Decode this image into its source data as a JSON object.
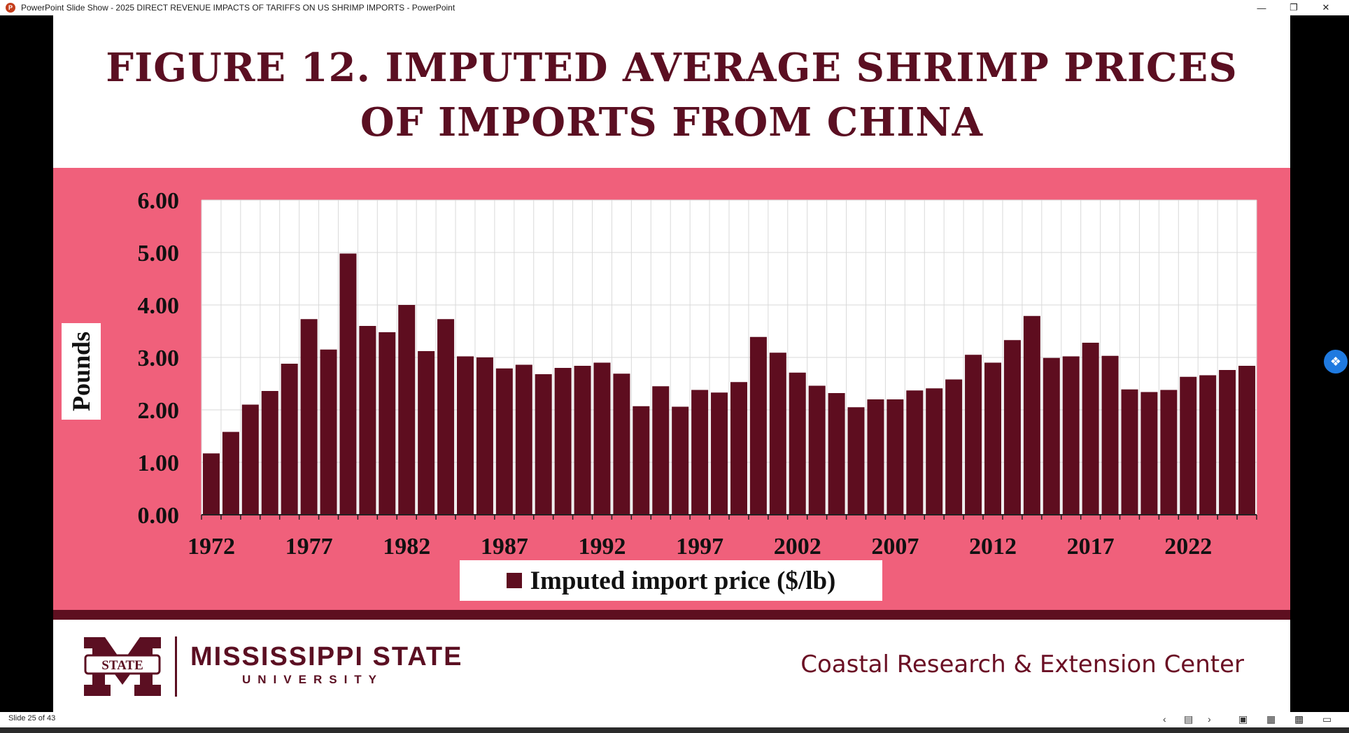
{
  "window": {
    "app_title": "PowerPoint Slide Show  -  2025 DIRECT REVENUE IMPACTS OF TARIFFS ON US SHRIMP IMPORTS - PowerPoint",
    "app_icon": "P"
  },
  "slide": {
    "title_line1": "FIGURE 12. IMPUTED AVERAGE SHRIMP PRICES",
    "title_line2": "OF IMPORTS FROM CHINA",
    "university_name": "MISSISSIPPI STATE",
    "university_sub": "UNIVERSITY",
    "logo_text": "STATE",
    "center_name": "Coastal Research & Extension Center",
    "colors": {
      "maroon": "#5b0f22",
      "bar": "#5e0d1f",
      "panel": "#f0607b",
      "plot_bg": "#ffffff"
    }
  },
  "chart_data": {
    "type": "bar",
    "title": "",
    "ylabel": "Pounds",
    "xlabel": "",
    "ylim": [
      0,
      6
    ],
    "ytick_labels": [
      "0.00",
      "1.00",
      "2.00",
      "3.00",
      "4.00",
      "5.00",
      "6.00"
    ],
    "xtick_labels": [
      "1972",
      "1977",
      "1982",
      "1987",
      "1992",
      "1997",
      "2002",
      "2007",
      "2012",
      "2017",
      "2022"
    ],
    "grid": true,
    "legend_position": "bottom",
    "series": [
      {
        "name": "Imputed import price ($/lb)",
        "x": [
          1972,
          1973,
          1974,
          1975,
          1976,
          1977,
          1978,
          1979,
          1980,
          1981,
          1982,
          1983,
          1984,
          1985,
          1986,
          1987,
          1988,
          1989,
          1990,
          1991,
          1992,
          1993,
          1994,
          1995,
          1996,
          1997,
          1998,
          1999,
          2000,
          2001,
          2002,
          2003,
          2004,
          2005,
          2006,
          2007,
          2008,
          2009,
          2010,
          2011,
          2012,
          2013,
          2014,
          2015,
          2016,
          2017,
          2018,
          2019,
          2020,
          2021,
          2022,
          2023,
          2024,
          2025
        ],
        "values": [
          1.17,
          1.58,
          2.1,
          2.36,
          2.88,
          3.73,
          3.15,
          4.98,
          3.6,
          3.48,
          4.0,
          3.12,
          3.73,
          3.02,
          3.0,
          2.79,
          2.86,
          2.68,
          2.8,
          2.84,
          2.9,
          2.69,
          2.07,
          2.45,
          2.06,
          2.38,
          2.33,
          2.53,
          3.39,
          3.09,
          2.71,
          2.46,
          2.32,
          2.05,
          2.2,
          2.2,
          2.37,
          2.41,
          2.58,
          3.05,
          2.9,
          3.33,
          3.79,
          2.99,
          3.02,
          3.28,
          3.03,
          2.39,
          2.34,
          2.38,
          2.63,
          2.66,
          2.76,
          2.84
        ]
      }
    ]
  },
  "statusbar": {
    "slide_counter": "Slide 25 of 43"
  }
}
